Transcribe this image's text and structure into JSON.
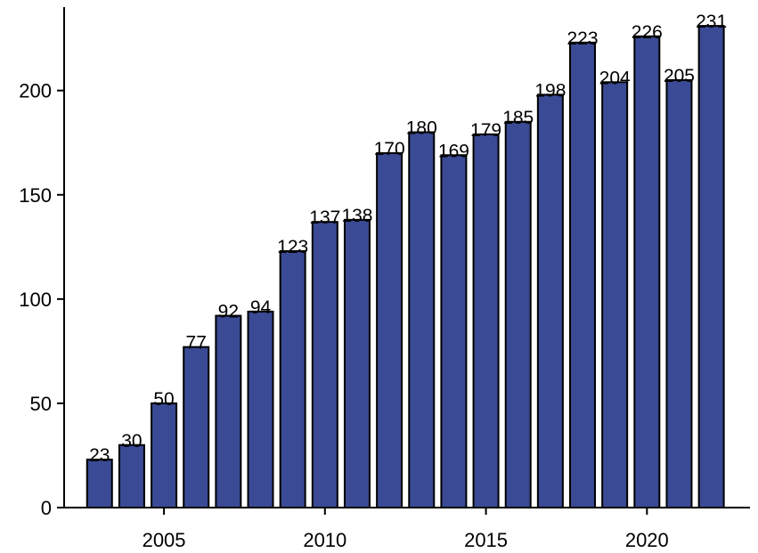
{
  "chart_data": {
    "type": "bar",
    "x": [
      2003,
      2004,
      2005,
      2006,
      2007,
      2008,
      2009,
      2010,
      2011,
      2012,
      2013,
      2014,
      2015,
      2016,
      2017,
      2018,
      2019,
      2020,
      2021,
      2022
    ],
    "values": [
      23,
      30,
      50,
      77,
      92,
      94,
      123,
      137,
      138,
      170,
      180,
      169,
      179,
      185,
      198,
      223,
      204,
      226,
      205,
      231
    ],
    "data_labels": [
      "23",
      "30",
      "50",
      "77",
      "92",
      "94",
      "123",
      "137",
      "138",
      "170",
      "180",
      "169",
      "179",
      "185",
      "198",
      "223",
      "204",
      "226",
      "205",
      "231"
    ],
    "title": "",
    "xlabel": "",
    "ylabel": "",
    "ylim": [
      0,
      240
    ],
    "xlim": [
      2001.9,
      2023.2
    ],
    "x_ticks": [
      2005,
      2010,
      2015,
      2020
    ],
    "x_tick_labels": [
      "2005",
      "2010",
      "2015",
      "2020"
    ],
    "y_ticks": [
      0,
      50,
      100,
      150,
      200
    ],
    "y_tick_labels": [
      "0",
      "50",
      "100",
      "150",
      "200"
    ],
    "grid": false,
    "legend": "none",
    "bar_color": "#3a4a94",
    "bar_edge_color": "#000000"
  }
}
